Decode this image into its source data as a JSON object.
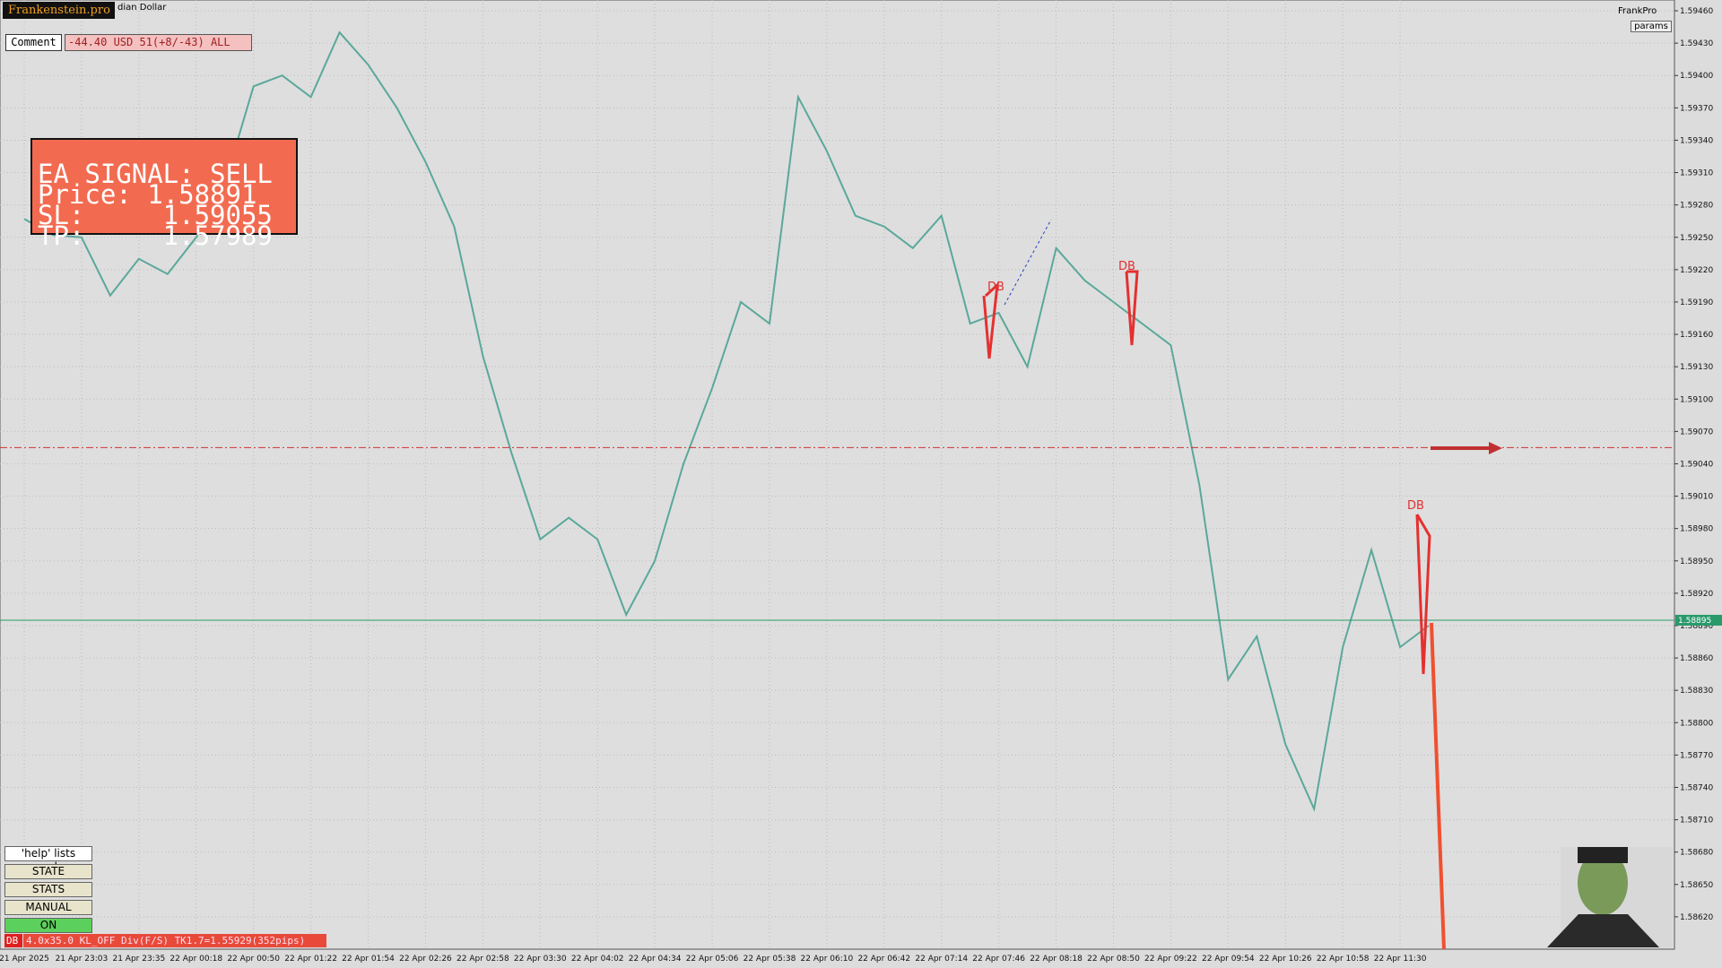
{
  "header": {
    "logo": "Frankenstein.pro",
    "symbol": "dian Dollar",
    "comment_button": "Comment",
    "comment_text": "-44.40 USD 51(+8/-43) ALL",
    "brand": "FrankPro",
    "params": "params"
  },
  "signal": {
    "lines": [
      "EA SIGNAL: SELL",
      "Price: 1.58891",
      "SL:     1.59055",
      "TP:     1.57989"
    ]
  },
  "buttons": [
    "'help' lists cmds",
    "STATE",
    "STATS",
    "MANUAL",
    "ON"
  ],
  "status": {
    "tag": "DB",
    "text": "4.0x35.0 KL_OFF Div(F/S) TK1.7=1.55929(352pips)"
  },
  "annotations": [
    "DB",
    "DB",
    "DB"
  ],
  "chart_data": {
    "type": "line",
    "color": "#5aa89a",
    "categories": [
      "21 Apr 2025",
      null,
      "21 Apr 23:03",
      null,
      "21 Apr 23:35",
      null,
      "22 Apr 00:18",
      null,
      "22 Apr 00:50",
      null,
      "22 Apr 01:22",
      null,
      "22 Apr 01:54",
      null,
      "22 Apr 02:26",
      null,
      "22 Apr 02:58",
      null,
      "22 Apr 03:30",
      null,
      "22 Apr 04:02",
      null,
      "22 Apr 04:34",
      null,
      "22 Apr 05:06",
      null,
      "22 Apr 05:38",
      null,
      "22 Apr 06:10",
      null,
      "22 Apr 06:42",
      null,
      "22 Apr 07:14",
      null,
      "22 Apr 07:46",
      null,
      "22 Apr 08:18",
      null,
      "22 Apr 08:50",
      null,
      "22 Apr 09:22",
      null,
      "22 Apr 09:54",
      null,
      "22 Apr 10:26",
      null,
      "22 Apr 10:58",
      null,
      "22 Apr 11:30",
      null
    ],
    "values": [
      1.59267,
      1.59252,
      1.5925,
      1.59196,
      1.5923,
      1.59216,
      1.5925,
      1.593,
      1.5939,
      1.594,
      1.5938,
      1.5944,
      1.5941,
      1.5937,
      1.5932,
      1.5926,
      1.5914,
      1.5905,
      1.5897,
      1.5899,
      1.5897,
      1.589,
      1.5895,
      1.5904,
      1.5911,
      1.5919,
      1.5917,
      1.5938,
      1.5933,
      1.5927,
      1.5926,
      1.5924,
      1.5927,
      1.5917,
      1.5918,
      1.5913,
      1.5924,
      1.5921,
      1.5919,
      1.5917,
      1.5915,
      1.5902,
      1.5884,
      1.5888,
      1.5878,
      1.5872,
      1.5887,
      1.5896,
      1.5887,
      1.5889
    ],
    "ylim": [
      1.5859,
      1.5947
    ],
    "yticks": [
      {
        "value": 1.5946,
        "label": "1.59460"
      },
      {
        "value": 1.5943,
        "label": "1.59430"
      },
      {
        "value": 1.594,
        "label": "1.59400"
      },
      {
        "value": 1.5937,
        "label": "1.59370"
      },
      {
        "value": 1.5934,
        "label": "1.59340"
      },
      {
        "value": 1.5931,
        "label": "1.59310"
      },
      {
        "value": 1.5928,
        "label": "1.59280"
      },
      {
        "value": 1.5925,
        "label": "1.59250"
      },
      {
        "value": 1.5922,
        "label": "1.59220"
      },
      {
        "value": 1.5919,
        "label": "1.59190"
      },
      {
        "value": 1.5916,
        "label": "1.59160"
      },
      {
        "value": 1.5913,
        "label": "1.59130"
      },
      {
        "value": 1.591,
        "label": "1.59100"
      },
      {
        "value": 1.5907,
        "label": "1.59070"
      },
      {
        "value": 1.5904,
        "label": "1.59040"
      },
      {
        "value": 1.5901,
        "label": "1.59010"
      },
      {
        "value": 1.5898,
        "label": "1.58980"
      },
      {
        "value": 1.5895,
        "label": "1.58950"
      },
      {
        "value": 1.5892,
        "label": "1.58920"
      },
      {
        "value": 1.5889,
        "label": "1.58890"
      },
      {
        "value": 1.5886,
        "label": "1.58860"
      },
      {
        "value": 1.5883,
        "label": "1.58830"
      },
      {
        "value": 1.588,
        "label": "1.58800"
      },
      {
        "value": 1.5877,
        "label": "1.58770"
      },
      {
        "value": 1.5874,
        "label": "1.58740"
      },
      {
        "value": 1.5871,
        "label": "1.58710"
      },
      {
        "value": 1.5868,
        "label": "1.58680"
      },
      {
        "value": 1.5865,
        "label": "1.58650"
      },
      {
        "value": 1.5862,
        "label": "1.58620"
      }
    ],
    "grid": true,
    "bid": 1.58895,
    "sl_level": 1.59055
  }
}
